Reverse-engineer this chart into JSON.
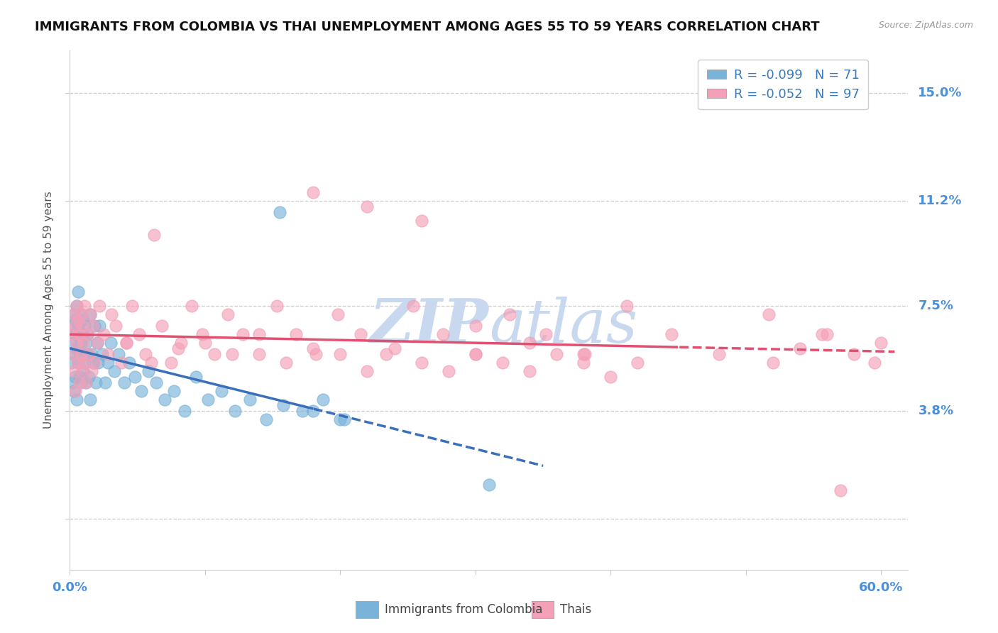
{
  "title": "IMMIGRANTS FROM COLOMBIA VS THAI UNEMPLOYMENT AMONG AGES 55 TO 59 YEARS CORRELATION CHART",
  "source_text": "Source: ZipAtlas.com",
  "ylabel": "Unemployment Among Ages 55 to 59 years",
  "xlim": [
    0.0,
    0.62
  ],
  "ylim": [
    -0.018,
    0.165
  ],
  "ytick_vals": [
    0.0,
    0.038,
    0.075,
    0.112,
    0.15
  ],
  "ytick_labels": [
    "",
    "3.8%",
    "7.5%",
    "11.2%",
    "15.0%"
  ],
  "colombia_R": -0.099,
  "colombia_N": 71,
  "thai_R": -0.052,
  "thai_N": 97,
  "colombia_color": "#7ab3d9",
  "thai_color": "#f4a0b8",
  "colombia_trend_color": "#3a6fba",
  "thai_trend_color": "#e05070",
  "background_color": "#ffffff",
  "grid_color": "#cccccc",
  "watermark_color": "#dde5f0",
  "right_label_color": "#4a90d9",
  "title_fontsize": 13,
  "tick_fontsize": 12,
  "legend_fontsize": 13,
  "colombia_x": [
    0.001,
    0.001,
    0.002,
    0.002,
    0.003,
    0.003,
    0.003,
    0.004,
    0.004,
    0.004,
    0.005,
    0.005,
    0.005,
    0.006,
    0.006,
    0.006,
    0.007,
    0.007,
    0.007,
    0.008,
    0.008,
    0.008,
    0.009,
    0.009,
    0.01,
    0.01,
    0.011,
    0.011,
    0.012,
    0.012,
    0.013,
    0.013,
    0.014,
    0.015,
    0.015,
    0.016,
    0.017,
    0.018,
    0.019,
    0.02,
    0.021,
    0.022,
    0.024,
    0.026,
    0.028,
    0.03,
    0.033,
    0.036,
    0.04,
    0.044,
    0.048,
    0.053,
    0.058,
    0.064,
    0.07,
    0.077,
    0.085,
    0.093,
    0.102,
    0.112,
    0.122,
    0.133,
    0.145,
    0.158,
    0.172,
    0.187,
    0.203,
    0.155,
    0.18,
    0.2,
    0.31
  ],
  "colombia_y": [
    0.062,
    0.055,
    0.068,
    0.048,
    0.058,
    0.072,
    0.045,
    0.065,
    0.05,
    0.07,
    0.06,
    0.075,
    0.042,
    0.068,
    0.055,
    0.08,
    0.05,
    0.065,
    0.058,
    0.072,
    0.048,
    0.062,
    0.058,
    0.065,
    0.07,
    0.052,
    0.055,
    0.068,
    0.048,
    0.062,
    0.058,
    0.065,
    0.05,
    0.072,
    0.042,
    0.058,
    0.055,
    0.068,
    0.048,
    0.062,
    0.055,
    0.068,
    0.058,
    0.048,
    0.055,
    0.062,
    0.052,
    0.058,
    0.048,
    0.055,
    0.05,
    0.045,
    0.052,
    0.048,
    0.042,
    0.045,
    0.038,
    0.05,
    0.042,
    0.045,
    0.038,
    0.042,
    0.035,
    0.04,
    0.038,
    0.042,
    0.035,
    0.108,
    0.038,
    0.035,
    0.012
  ],
  "thai_x": [
    0.001,
    0.002,
    0.003,
    0.003,
    0.004,
    0.004,
    0.005,
    0.005,
    0.006,
    0.006,
    0.007,
    0.007,
    0.008,
    0.008,
    0.009,
    0.009,
    0.01,
    0.01,
    0.011,
    0.012,
    0.013,
    0.014,
    0.015,
    0.016,
    0.017,
    0.018,
    0.02,
    0.022,
    0.025,
    0.028,
    0.031,
    0.034,
    0.038,
    0.042,
    0.046,
    0.051,
    0.056,
    0.062,
    0.068,
    0.075,
    0.082,
    0.09,
    0.098,
    0.107,
    0.117,
    0.128,
    0.14,
    0.153,
    0.167,
    0.182,
    0.198,
    0.215,
    0.234,
    0.254,
    0.276,
    0.3,
    0.325,
    0.352,
    0.381,
    0.412,
    0.445,
    0.48,
    0.517,
    0.556,
    0.52,
    0.54,
    0.56,
    0.58,
    0.595,
    0.6,
    0.042,
    0.06,
    0.08,
    0.1,
    0.12,
    0.14,
    0.16,
    0.18,
    0.2,
    0.22,
    0.24,
    0.26,
    0.28,
    0.3,
    0.32,
    0.34,
    0.36,
    0.38,
    0.4,
    0.42,
    0.18,
    0.22,
    0.26,
    0.3,
    0.34,
    0.38,
    0.57
  ],
  "thai_y": [
    0.065,
    0.058,
    0.072,
    0.052,
    0.068,
    0.045,
    0.062,
    0.075,
    0.055,
    0.07,
    0.048,
    0.065,
    0.058,
    0.072,
    0.052,
    0.068,
    0.055,
    0.062,
    0.075,
    0.048,
    0.065,
    0.058,
    0.072,
    0.052,
    0.068,
    0.055,
    0.062,
    0.075,
    0.065,
    0.058,
    0.072,
    0.068,
    0.055,
    0.062,
    0.075,
    0.065,
    0.058,
    0.1,
    0.068,
    0.055,
    0.062,
    0.075,
    0.065,
    0.058,
    0.072,
    0.065,
    0.058,
    0.075,
    0.065,
    0.058,
    0.072,
    0.065,
    0.058,
    0.075,
    0.065,
    0.058,
    0.072,
    0.065,
    0.058,
    0.075,
    0.065,
    0.058,
    0.072,
    0.065,
    0.055,
    0.06,
    0.065,
    0.058,
    0.055,
    0.062,
    0.062,
    0.055,
    0.06,
    0.062,
    0.058,
    0.065,
    0.055,
    0.06,
    0.058,
    0.052,
    0.06,
    0.055,
    0.052,
    0.058,
    0.055,
    0.052,
    0.058,
    0.055,
    0.05,
    0.055,
    0.115,
    0.11,
    0.105,
    0.068,
    0.062,
    0.058,
    0.01
  ]
}
